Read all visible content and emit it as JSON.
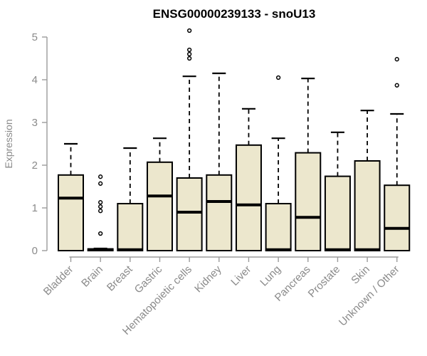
{
  "chart_data": {
    "type": "box",
    "title": "ENSG00000239133 - snoU13",
    "ylabel": "Expression",
    "xlabel": "",
    "ylim": [
      0,
      5
    ],
    "yticks": [
      0,
      1,
      2,
      3,
      4,
      5
    ],
    "grid": false,
    "legend": null,
    "categories": [
      "Bladder",
      "Brain",
      "Breast",
      "Gastric",
      "Hematopoietic cells",
      "Kidney",
      "Liver",
      "Lung",
      "Pancreas",
      "Prostate",
      "Skin",
      "Unknown / Other"
    ],
    "series": [
      {
        "name": "Bladder",
        "min": 0,
        "q1": 0,
        "median": 1.23,
        "q3": 1.77,
        "max": 2.5,
        "outliers": []
      },
      {
        "name": "Brain",
        "min": 0,
        "q1": 0,
        "median": 0.02,
        "q3": 0.04,
        "max": 0.05,
        "outliers": [
          1.73,
          1.57,
          1.13,
          1.03,
          0.93,
          0.4
        ]
      },
      {
        "name": "Breast",
        "min": 0,
        "q1": 0,
        "median": 0.02,
        "q3": 1.1,
        "max": 2.4,
        "outliers": []
      },
      {
        "name": "Gastric",
        "min": 0,
        "q1": 0,
        "median": 1.28,
        "q3": 2.07,
        "max": 2.63,
        "outliers": []
      },
      {
        "name": "Hematopoietic cells",
        "min": 0,
        "q1": 0,
        "median": 0.9,
        "q3": 1.7,
        "max": 4.08,
        "outliers": [
          5.15,
          4.7,
          4.6,
          4.5
        ]
      },
      {
        "name": "Kidney",
        "min": 0,
        "q1": 0,
        "median": 1.15,
        "q3": 1.77,
        "max": 4.15,
        "outliers": []
      },
      {
        "name": "Liver",
        "min": 0,
        "q1": 0,
        "median": 1.07,
        "q3": 2.47,
        "max": 3.32,
        "outliers": []
      },
      {
        "name": "Lung",
        "min": 0,
        "q1": 0,
        "median": 0.02,
        "q3": 1.1,
        "max": 2.63,
        "outliers": [
          4.05
        ]
      },
      {
        "name": "Pancreas",
        "min": 0,
        "q1": 0,
        "median": 0.78,
        "q3": 2.29,
        "max": 4.03,
        "outliers": []
      },
      {
        "name": "Prostate",
        "min": 0,
        "q1": 0,
        "median": 0.02,
        "q3": 1.74,
        "max": 2.77,
        "outliers": []
      },
      {
        "name": "Skin",
        "min": 0,
        "q1": 0,
        "median": 0.02,
        "q3": 2.1,
        "max": 3.28,
        "outliers": []
      },
      {
        "name": "Unknown / Other",
        "min": 0,
        "q1": 0,
        "median": 0.52,
        "q3": 1.53,
        "max": 3.2,
        "outliers": [
          4.48,
          3.87
        ]
      }
    ],
    "colors": {
      "box_fill": "#ece7cd",
      "box_stroke": "#000000",
      "median": "#000000",
      "whisker": "#000000",
      "axis_line": "#9b9b9b",
      "axis_text": "#8a8a8a",
      "title": "#000000",
      "background": "#ffffff"
    }
  }
}
